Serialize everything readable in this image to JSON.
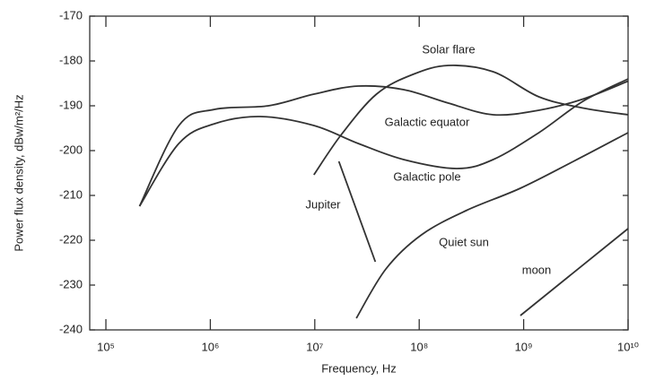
{
  "chart_data": {
    "type": "line",
    "x_label": "Frequency,  Hz",
    "y_label": "Power flux density, dBw/m²/Hz",
    "xscale": "log",
    "xlim": [
      70000,
      10000000000.0
    ],
    "xticks": [
      {
        "value": 100000.0,
        "label": "10⁵"
      },
      {
        "value": 1000000.0,
        "label": "10⁶"
      },
      {
        "value": 10000000.0,
        "label": "10⁷"
      },
      {
        "value": 100000000.0,
        "label": "10⁸"
      },
      {
        "value": 1000000000.0,
        "label": "10⁹"
      },
      {
        "value": 10000000000.0,
        "label": "10¹⁰"
      }
    ],
    "ylim": [
      -240,
      -170
    ],
    "yticks": [
      -240,
      -230,
      -220,
      -210,
      -200,
      -190,
      -180,
      -170
    ],
    "series": [
      {
        "name": "Solar flare",
        "color": "#333333",
        "x": [
          9800000.0,
          18000000.0,
          39000000.0,
          87000000.0,
          190000000.0,
          510000000.0,
          1400000000.0,
          3700000000.0,
          10000000000.0
        ],
        "values": [
          -205.4,
          -196.4,
          -187.4,
          -183,
          -181,
          -182.4,
          -188,
          -190.5,
          -192
        ]
      },
      {
        "name": "Galactic equator",
        "color": "#333333",
        "x": [
          210000.0,
          500000.0,
          1100000.0,
          3600000.0,
          9800000.0,
          26000000.0,
          71000000.0,
          190000000.0,
          510000000.0,
          1400000000.0,
          3700000000.0,
          10000000000.0
        ],
        "values": [
          -212.4,
          -194.4,
          -190.8,
          -190,
          -187.4,
          -185.6,
          -186.4,
          -189.4,
          -192,
          -191,
          -188.5,
          -184.5
        ]
      },
      {
        "name": "Galactic pole",
        "color": "#333333",
        "x": [
          210000.0,
          500000.0,
          1100000.0,
          3000000.0,
          9800000.0,
          26000000.0,
          71000000.0,
          230000000.0,
          510000000.0,
          1400000000.0,
          3700000000.0,
          10000000000.0
        ],
        "values": [
          -212.4,
          -198.4,
          -194,
          -192.4,
          -194.4,
          -198.4,
          -202,
          -204,
          -202,
          -196,
          -189,
          -184
        ]
      },
      {
        "name": "Jupiter",
        "color": "#333333",
        "x": [
          17000000.0,
          38000000.0
        ],
        "values": [
          -202.4,
          -224.8
        ]
      },
      {
        "name": "Quiet sun",
        "color": "#333333",
        "x": [
          25000000.0,
          48000000.0,
          105000000.0,
          280000000.0,
          930000000.0,
          3000000000.0,
          10000000000.0
        ],
        "values": [
          -237.4,
          -226.4,
          -218.8,
          -213.4,
          -208.4,
          -202.4,
          -196
        ]
      },
      {
        "name": "moon",
        "color": "#333333",
        "x": [
          930000000.0,
          10000000000.0
        ],
        "values": [
          -236.8,
          -217.4
        ]
      }
    ]
  }
}
